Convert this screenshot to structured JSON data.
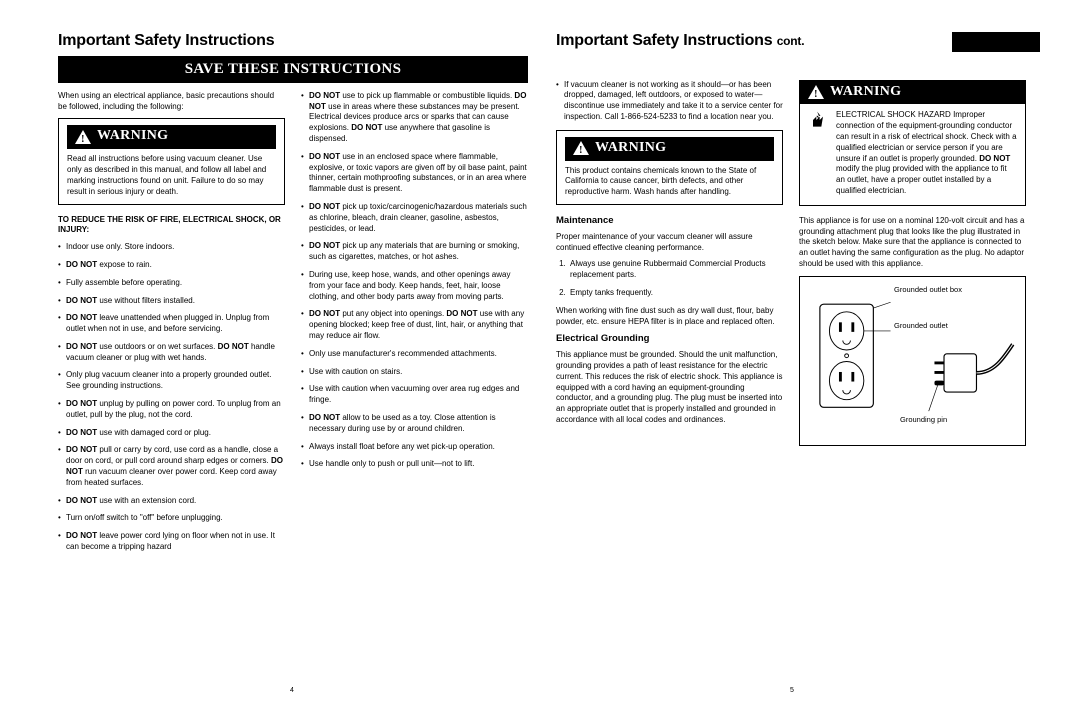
{
  "leftPage": {
    "title": "Important Safety Instructions",
    "saveBar": "SAVE THESE INSTRUCTIONS",
    "pageNum": "4",
    "col1": {
      "intro": "When using an electrical appliance, basic precautions should be followed, including the following:",
      "warningLabel": "WARNING",
      "warnBody": "Read all instructions before using vacuum cleaner. Use only as described in this manual, and follow all label and marking instructions found on unit. Failure to do so may result in serious injury or death.",
      "riskHeading": "TO REDUCE THE RISK OF FIRE, ELECTRICAL SHOCK, OR INJURY:",
      "bullets": [
        "Indoor use only. Store indoors.",
        "<b>DO NOT</b> expose to rain.",
        "Fully assemble before operating.",
        "<b>DO NOT</b> use without filters installed.",
        "<b>DO NOT</b> leave unattended when plugged in. Unplug from outlet when not in use, and before servicing.",
        "<b>DO NOT</b> use outdoors or on wet surfaces. <b>DO NOT</b> handle vacuum cleaner or plug with wet hands.",
        "Only plug vacuum cleaner into a properly grounded outlet. See grounding instructions.",
        "<b>DO NOT</b> unplug by pulling on power cord. To unplug from an outlet, pull by the plug, not the cord.",
        "<b>DO NOT</b> use with damaged cord or plug.",
        "<b>DO NOT</b> pull or carry by cord, use cord as a handle, close a door on cord, or pull cord around sharp edges or corners. <b>DO NOT</b> run vacuum cleaner over power cord. Keep cord away from heated surfaces.",
        "<b>DO NOT</b> use with an extension cord.",
        "Turn on/off switch to \"off\" before unplugging.",
        "<b>DO NOT</b> leave power cord lying on floor when not in use. It can become a tripping hazard"
      ]
    },
    "col2": {
      "bullets": [
        "<b>DO NOT</b> use to pick up flammable or combustible liquids. <b>DO NOT</b> use in areas where these substances may be present. Electrical devices produce arcs or sparks that can cause explosions. <b>DO NOT</b> use anywhere that gasoline is dispensed.",
        "<b>DO NOT</b> use in an enclosed space where flammable, explosive, or toxic vapors are given off by oil base paint, paint thinner, certain mothproofing substances, or in an area where flammable dust is present.",
        "<b>DO NOT</b> pick up toxic/carcinogenic/hazardous materials such as chlorine, bleach, drain cleaner, gasoline, asbestos, pesticides, or lead.",
        "<b>DO NOT</b> pick up any materials that are burning or smoking, such as cigarettes, matches, or hot ashes.",
        "During use, keep hose, wands, and other openings away from your face and body. Keep hands, feet, hair, loose clothing, and other body parts away from moving parts.",
        "<b>DO NOT</b> put any object into openings. <b>DO NOT</b> use with any opening blocked; keep free of dust, lint, hair, or anything that may reduce air flow.",
        "Only use manufacturer's recommended attachments.",
        "Use with caution on stairs.",
        "Use with caution when vacuuming over area rug edges and fringe.",
        "<b>DO NOT</b> allow to be used as a toy. Close attention is necessary during use by or around children.",
        "Always install float before any wet pick-up operation.",
        "Use handle only to push or pull unit—not to lift."
      ]
    }
  },
  "rightPage": {
    "title": "Important Safety Instructions",
    "titleCont": "cont.",
    "pageNum": "5",
    "col1": {
      "bullets": [
        "If vacuum cleaner is not working as it should—or has been dropped, damaged, left outdoors, or exposed to water—discontinue use immediately and take it to a service center for inspection. Call 1-866-524-5233 to find a location near you."
      ],
      "warningLabel": "WARNING",
      "warnBody": "This product contains chemicals known to the State of California to cause cancer, birth defects, and other reproductive harm. Wash hands after handling.",
      "maintHeading": "Maintenance",
      "maintPara": "Proper maintenance of your vaccum cleaner will assure continued effective cleaning performance.",
      "maintList": [
        "Always use genuine Rubbermaid Commercial Products replacement parts.",
        "Empty tanks frequently."
      ],
      "maintAfter": "When working with fine dust such as dry wall dust, flour, baby powder, etc. ensure HEPA filter is in place and replaced often.",
      "elecHeading": "Electrical Grounding",
      "elecPara": "This appliance must be grounded. Should the unit malfunction, grounding provides a path of least resistance for the electric current. This reduces the risk of electric shock. This appliance is equipped with a cord having an equipment-grounding conductor, and a grounding plug. The plug must be inserted into an appropriate outlet that is properly installed and grounded in accordance with all local codes and ordinances."
    },
    "col2": {
      "warningLabel": "WARNING",
      "shockTitle": "ELECTRICAL SHOCK HAZARD",
      "shockBody": "Improper connection of the equipment-grounding conductor can result in a risk of electrical shock. Check with a qualified electrician or service person if you are unsure if an outlet is properly grounded. <b>DO NOT</b> modify the plug provided with the appliance to fit an outlet, have a proper outlet installed by a qualified electrician.",
      "volt": "This appliance is for use on a nominal 120-volt circuit and has a grounding attachment plug that looks like the plug illustrated in the sketch below. Make sure that the appliance is connected to an outlet having the same configuration as the plug. No adaptor should be used with this appliance.",
      "figLabels": {
        "a": "Grounded outlet box",
        "b": "Grounded outlet",
        "c": "Grounding pin"
      }
    }
  }
}
